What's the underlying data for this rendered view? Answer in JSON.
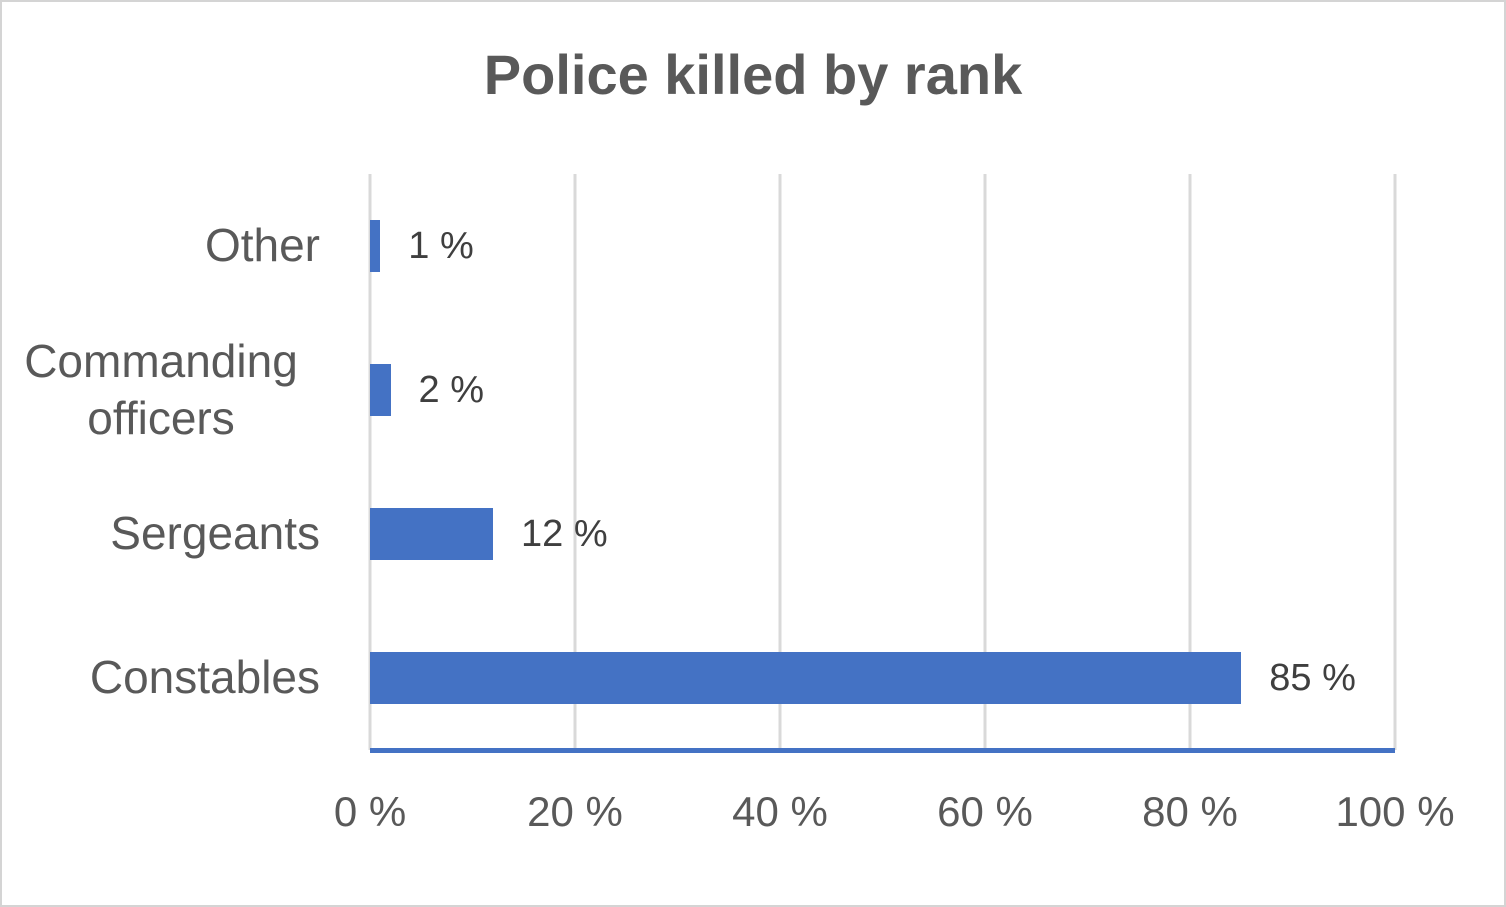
{
  "colors": {
    "bar": "#4472C4",
    "axis_line": "#4472C4",
    "gridline": "#D9D9D9",
    "text": "#595959",
    "data_label": "#3F3F3F"
  },
  "chart_data": {
    "type": "bar",
    "orientation": "horizontal",
    "title": "Police killed by rank",
    "categories": [
      "Other",
      "Commanding officers",
      "Sergeants",
      "Constables"
    ],
    "values": [
      1,
      2,
      12,
      85
    ],
    "data_labels": [
      "1 %",
      "2 %",
      "12 %",
      "85 %"
    ],
    "x_axis": {
      "range": [
        0,
        100
      ],
      "ticks": [
        0,
        20,
        40,
        60,
        80,
        100
      ],
      "tick_labels": [
        "0 %",
        "20 %",
        "40 %",
        "60 %",
        "80 %",
        "100 %"
      ]
    },
    "ylabel": "",
    "xlabel": "",
    "grid": "vertical",
    "legend": "none"
  }
}
